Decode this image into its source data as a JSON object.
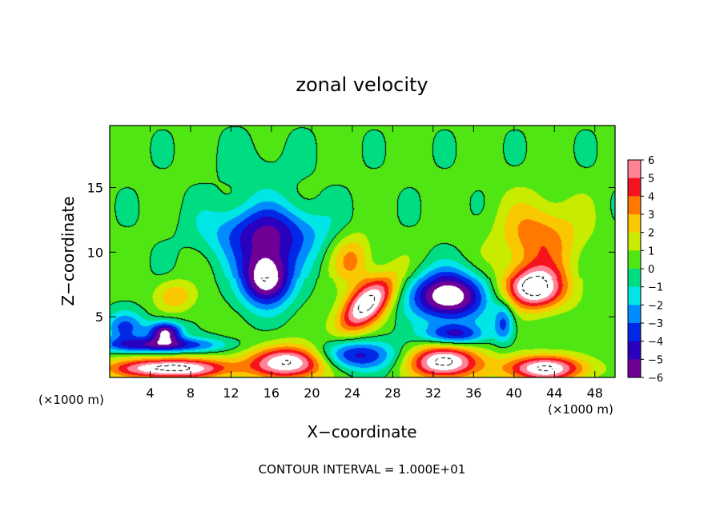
{
  "chart_data": {
    "type": "heatmap",
    "title": "zonal velocity",
    "xlabel": "X−coordinate",
    "ylabel": "Z−coordinate",
    "x_unit_left": "(×1000 m)",
    "x_unit_right": "(×1000 m)",
    "xlim": [
      0,
      50
    ],
    "ylim": [
      0.3,
      19.8
    ],
    "xticks": [
      4,
      8,
      12,
      16,
      20,
      24,
      28,
      32,
      36,
      40,
      44,
      48
    ],
    "yticks": [
      5,
      10,
      15
    ],
    "colorbar": {
      "range": [
        -6,
        6
      ],
      "ticks": [
        6,
        5,
        4,
        3,
        2,
        1,
        0,
        -1,
        -2,
        -3,
        -4,
        -5,
        -6
      ],
      "tick_labels": [
        "6",
        "5",
        "4",
        "3",
        "2",
        "1",
        "0",
        "−1",
        "−2",
        "−3",
        "−4",
        "−5",
        "−6"
      ]
    },
    "footer": "CONTOUR INTERVAL = 1.000E+01",
    "features": [
      {
        "kind": "max",
        "x": 25.5,
        "z": 6.0,
        "value": 7.5,
        "sx": 2.2,
        "sz": 2.2,
        "tilt": -0.8
      },
      {
        "kind": "max",
        "x": 42.0,
        "z": 7.2,
        "value": 7.5,
        "sx": 3.0,
        "sz": 1.6
      },
      {
        "kind": "max",
        "x": 42.5,
        "z": 11.0,
        "value": 3.5,
        "sx": 4.0,
        "sz": 3.0
      },
      {
        "kind": "max",
        "x": 24.0,
        "z": 9.5,
        "value": 3.0,
        "sx": 2.0,
        "sz": 2.0
      },
      {
        "kind": "max",
        "x": 6.0,
        "z": 1.0,
        "value": 7.5,
        "sx": 6.0,
        "sz": 0.8
      },
      {
        "kind": "max",
        "x": 18.0,
        "z": 1.5,
        "value": 7.5,
        "sx": 4.0,
        "sz": 1.3
      },
      {
        "kind": "max",
        "x": 33.0,
        "z": 1.5,
        "value": 7.5,
        "sx": 3.5,
        "sz": 1.3
      },
      {
        "kind": "max",
        "x": 43.0,
        "z": 1.0,
        "value": 7.0,
        "sx": 4.0,
        "sz": 1.0
      },
      {
        "kind": "max",
        "x": 6.5,
        "z": 6.6,
        "value": 2.5,
        "sx": 2.0,
        "sz": 1.2
      },
      {
        "kind": "min",
        "x": 15.5,
        "z": 8.0,
        "value": -7.5,
        "sx": 2.6,
        "sz": 2.2
      },
      {
        "kind": "min",
        "x": 15.5,
        "z": 11.5,
        "value": -5.0,
        "sx": 5.5,
        "sz": 2.2
      },
      {
        "kind": "min",
        "x": 33.5,
        "z": 6.6,
        "value": -7.5,
        "sx": 3.8,
        "sz": 1.9
      },
      {
        "kind": "min",
        "x": 5.5,
        "z": 3.8,
        "value": -6.5,
        "sx": 1.6,
        "sz": 0.8
      },
      {
        "kind": "min",
        "x": 5.0,
        "z": 2.8,
        "value": -5.0,
        "sx": 6.0,
        "sz": 0.6
      },
      {
        "kind": "min",
        "x": 24.0,
        "z": 2.0,
        "value": -5.0,
        "sx": 4.5,
        "sz": 1.2
      },
      {
        "kind": "min",
        "x": 34.0,
        "z": 3.6,
        "value": -4.5,
        "sx": 3.0,
        "sz": 0.8
      },
      {
        "kind": "min",
        "x": 1.5,
        "z": 4.2,
        "value": -3.5,
        "sx": 2.0,
        "sz": 1.2
      },
      {
        "kind": "min",
        "x": 39.0,
        "z": 4.5,
        "value": -3.5,
        "sx": 1.0,
        "sz": 1.5
      },
      {
        "kind": "min",
        "x": 15.0,
        "z": 16.5,
        "value": -0.8,
        "sx": 4.0,
        "sz": 2.5
      }
    ]
  }
}
